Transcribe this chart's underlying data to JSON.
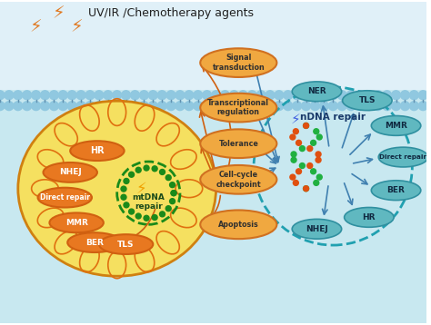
{
  "title": "UV/IR /Chemotherapy agents",
  "bg_top": "#e8f4f8",
  "bg_bottom": "#b8dce8",
  "membrane_color": "#7ab8d4",
  "cell_outer_color": "#e8c830",
  "cell_inner_color": "#f5e870",
  "mt_circle_color": "#2d8a2d",
  "mt_label": "mtDNA\nrepair",
  "nd_label": "nDNA repair",
  "signal_boxes": [
    "Signal\ntransduction",
    "Transcriptional\nregulation",
    "Tolerance",
    "Cell-cycle\ncheckpoint",
    "Apoptosis"
  ],
  "mt_repair_labels": [
    "HR",
    "NHEJ",
    "Direct repair",
    "MMR",
    "BER",
    "TLS"
  ],
  "nd_repair_labels": [
    "NHEJ",
    "HR",
    "BER",
    "Direct repair",
    "MMR",
    "TLS",
    "NER"
  ],
  "orange_color": "#e87820",
  "teal_color": "#40b8c8",
  "light_teal": "#88d0d8",
  "box_orange": "#f0a840",
  "box_teal": "#60c8c0",
  "arrow_orange": "#d86010",
  "arrow_blue": "#4090c0"
}
